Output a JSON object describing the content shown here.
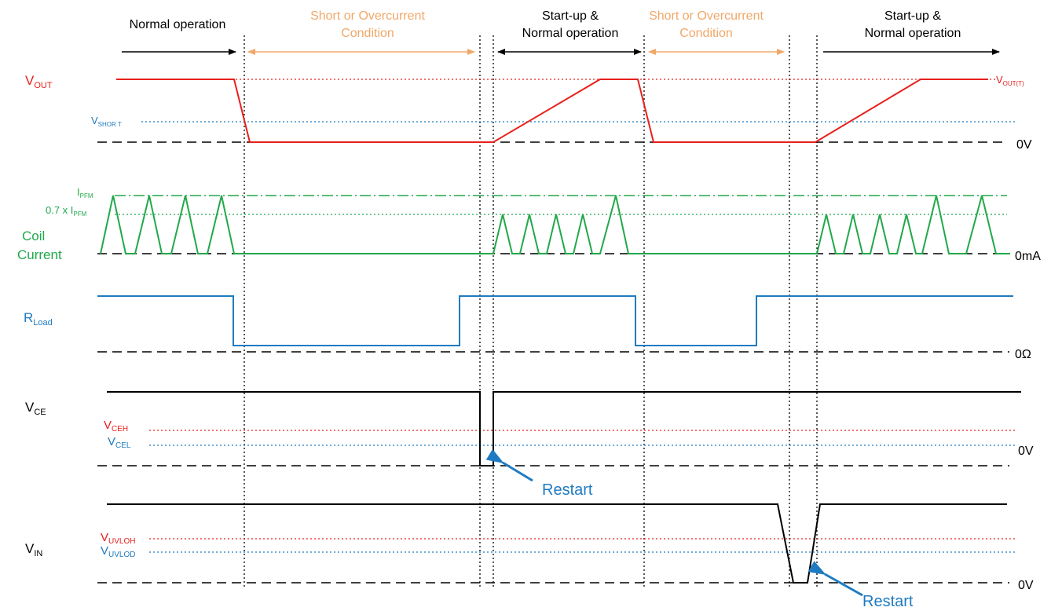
{
  "colors": {
    "black": "#000000",
    "red": "#e8201c",
    "blue": "#1f7bc1",
    "green": "#21a84a",
    "orange": "#f0a868"
  },
  "phases": {
    "p1": "Normal operation",
    "p2_line1": "Short  or Overcurrent",
    "p2_line2": "Condition",
    "p3_line1": "Start-up &",
    "p3_line2": "Normal operation",
    "p4_line1": "Short  or Overcurrent",
    "p4_line2": "Condition",
    "p5_line1": "Start-up &",
    "p5_line2": "Normal operation"
  },
  "signals": {
    "vout": {
      "main": "V",
      "sub": "OUT"
    },
    "coil_line1": "Coil",
    "coil_line2": "Current",
    "rload": {
      "main": "R",
      "sub": "Load"
    },
    "vce": {
      "main": "V",
      "sub": "CE"
    },
    "vin": {
      "main": "V",
      "sub": "IN"
    }
  },
  "levels": {
    "vshort": {
      "main": "V",
      "sub": "SHOR T"
    },
    "voutt": {
      "main": "V",
      "sub": "OUT(T)"
    },
    "ipfm": {
      "main": "I",
      "sub": "PFM"
    },
    "ipfm07": {
      "prefix": "0.7 x I",
      "sub": "PFM"
    },
    "vceh": {
      "main": "V",
      "sub": "CEH"
    },
    "vcel": {
      "main": "V",
      "sub": "CEL"
    },
    "vuvloh": {
      "main": "V",
      "sub": "UVLOH"
    },
    "vuvlod": {
      "main": "V",
      "sub": "UVLOD"
    },
    "zero_v1": "0V",
    "zero_ma": "0mA",
    "zero_ohm": "0Ω",
    "zero_v2": "0V",
    "zero_v3": "0V"
  },
  "annotations": {
    "restart1": "Restart",
    "restart2": "Restart"
  }
}
